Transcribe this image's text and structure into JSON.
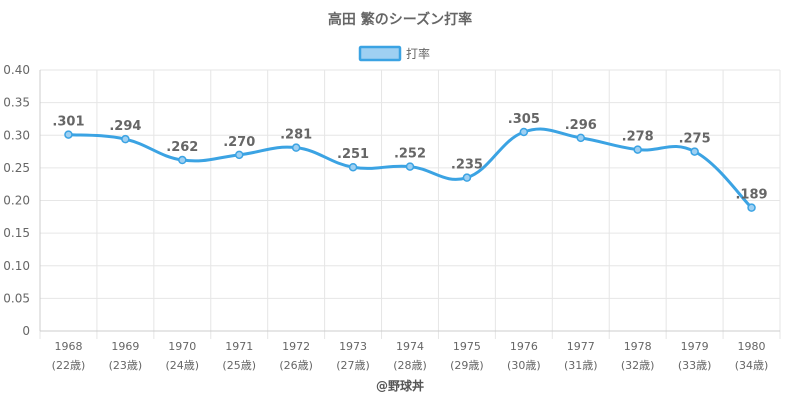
{
  "chart_data": {
    "type": "line",
    "title": "高田 繁のシーズン打率",
    "categories": [
      "1968",
      "1969",
      "1970",
      "1971",
      "1972",
      "1973",
      "1974",
      "1975",
      "1976",
      "1977",
      "1978",
      "1979",
      "1980"
    ],
    "category_sublabels": [
      "(22歳)",
      "(23歳)",
      "(24歳)",
      "(25歳)",
      "(26歳)",
      "(27歳)",
      "(28歳)",
      "(29歳)",
      "(30歳)",
      "(31歳)",
      "(32歳)",
      "(33歳)",
      "(34歳)"
    ],
    "series": [
      {
        "name": "打率",
        "values": [
          0.301,
          0.294,
          0.262,
          0.27,
          0.281,
          0.251,
          0.252,
          0.235,
          0.305,
          0.296,
          0.278,
          0.275,
          0.189
        ],
        "data_labels": [
          ".301",
          ".294",
          ".262",
          ".270",
          ".281",
          ".251",
          ".252",
          ".235",
          ".305",
          ".296",
          ".278",
          ".275",
          ".189"
        ]
      }
    ],
    "yticks": [
      "0",
      "0.05",
      "0.10",
      "0.15",
      "0.20",
      "0.25",
      "0.30",
      "0.35",
      "0.40"
    ],
    "ylim": [
      0,
      0.4
    ],
    "grid": true,
    "legend_position": "top-center"
  },
  "credit": "@野球丼",
  "colors": {
    "line": "#3ba3e3",
    "legend_fill": "#9fd0f2",
    "grid": "#e6e6e6",
    "axis": "#cccccc",
    "text": "#666666"
  }
}
